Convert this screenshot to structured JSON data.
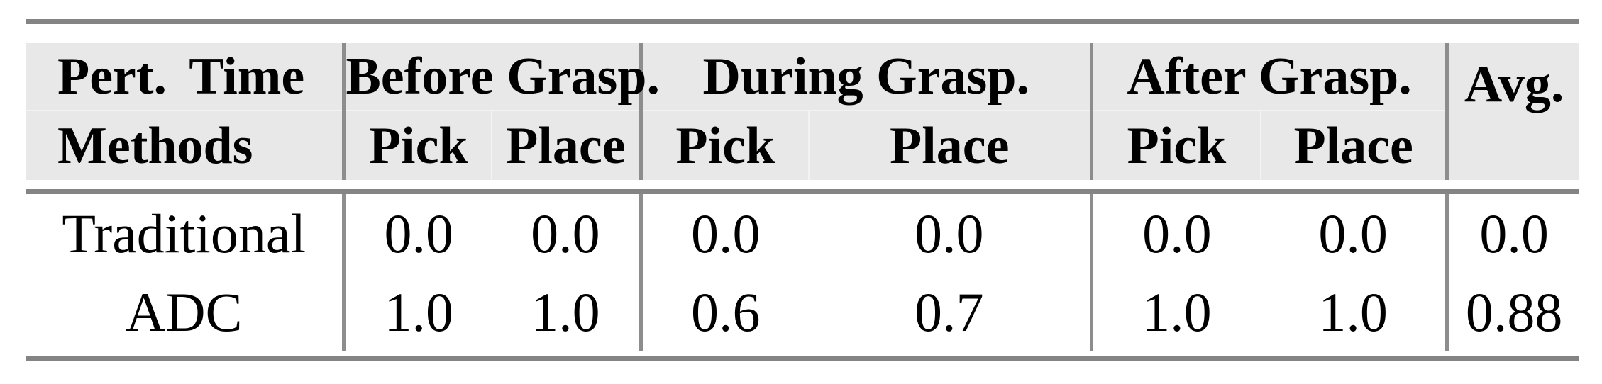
{
  "table": {
    "header": {
      "pert_time": "Pert. Time",
      "methods": "Methods",
      "groups": [
        {
          "label": "Before Grasp.",
          "pick": "Pick",
          "place": "Place"
        },
        {
          "label": "During Grasp.",
          "pick": "Pick",
          "place": "Place"
        },
        {
          "label": "After Grasp.",
          "pick": "Pick",
          "place": "Place"
        }
      ],
      "avg": "Avg."
    },
    "rows": [
      {
        "method": "Traditional",
        "values": [
          "0.0",
          "0.0",
          "0.0",
          "0.0",
          "0.0",
          "0.0"
        ],
        "avg": "0.0"
      },
      {
        "method": "ADC",
        "values": [
          "1.0",
          "1.0",
          "0.6",
          "0.7",
          "1.0",
          "1.0"
        ],
        "avg": "0.88"
      }
    ]
  },
  "colors": {
    "header_background": "#e8e8e8",
    "thick_rule": "#848484",
    "group_divider": "#8d8d8d",
    "text": "#000000"
  },
  "chart_data": {
    "type": "table",
    "columns": [
      "Pert. Time / Methods",
      "Before Grasp. Pick",
      "Before Grasp. Place",
      "During Grasp. Pick",
      "During Grasp. Place",
      "After Grasp. Pick",
      "After Grasp. Place",
      "Avg."
    ],
    "rows": [
      [
        "Traditional",
        0.0,
        0.0,
        0.0,
        0.0,
        0.0,
        0.0,
        0.0
      ],
      [
        "ADC",
        1.0,
        1.0,
        0.6,
        0.7,
        1.0,
        1.0,
        0.88
      ]
    ]
  }
}
